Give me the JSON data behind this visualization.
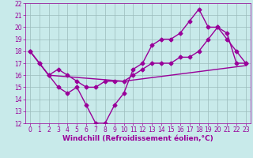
{
  "line1_x": [
    0,
    1,
    2,
    3,
    4,
    5,
    6,
    7,
    8,
    9,
    10,
    11,
    12,
    13,
    14,
    15,
    16,
    17,
    18,
    19,
    20,
    21,
    22,
    23
  ],
  "line1_y": [
    18,
    17,
    16,
    16.5,
    16,
    15.5,
    15,
    15,
    15.5,
    15.5,
    15.5,
    16,
    16.5,
    17,
    17,
    17,
    17.5,
    17.5,
    18,
    19,
    20,
    19.5,
    17,
    17
  ],
  "line2_x": [
    0,
    1,
    2,
    3,
    4,
    5,
    6,
    7,
    8,
    9,
    10,
    11,
    12,
    13,
    14,
    15,
    16,
    17,
    18,
    19,
    20,
    21,
    22,
    23
  ],
  "line2_y": [
    18,
    17,
    16,
    15,
    14.5,
    15,
    13.5,
    12,
    12,
    13.5,
    14.5,
    16.5,
    17,
    18.5,
    19,
    19,
    19.5,
    20.5,
    21.5,
    20,
    20,
    19,
    18,
    17
  ],
  "line3_x": [
    0,
    2,
    10,
    23
  ],
  "line3_y": [
    18,
    16,
    15.5,
    16.8
  ],
  "color": "#990099",
  "bg_color": "#c8eaea",
  "grid_color": "#9bbcbc",
  "xlabel": "Windchill (Refroidissement éolien,°C)",
  "xlim": [
    -0.5,
    23.5
  ],
  "ylim": [
    12,
    22
  ],
  "xticks": [
    0,
    1,
    2,
    3,
    4,
    5,
    6,
    7,
    8,
    9,
    10,
    11,
    12,
    13,
    14,
    15,
    16,
    17,
    18,
    19,
    20,
    21,
    22,
    23
  ],
  "yticks": [
    12,
    13,
    14,
    15,
    16,
    17,
    18,
    19,
    20,
    21,
    22
  ],
  "marker": "D",
  "markersize": 2.5,
  "linewidth": 1.0,
  "xlabel_fontsize": 6.5,
  "tick_fontsize": 5.5,
  "xlabel_color": "#990099",
  "tick_color": "#990099",
  "spine_color": "#990099"
}
